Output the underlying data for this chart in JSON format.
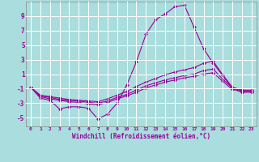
{
  "title": "",
  "xlabel": "Windchill (Refroidissement éolien,°C)",
  "ylabel": "",
  "bg_color": "#aadddd",
  "line_color": "#990099",
  "grid_color": "#bbeeee",
  "xlim": [
    -0.5,
    23.5
  ],
  "ylim": [
    -6.2,
    11.0
  ],
  "yticks": [
    -5,
    -3,
    -1,
    1,
    3,
    5,
    7,
    9
  ],
  "xticks": [
    0,
    1,
    2,
    3,
    4,
    5,
    6,
    7,
    8,
    9,
    10,
    11,
    12,
    13,
    14,
    15,
    16,
    17,
    18,
    19,
    20,
    21,
    22,
    23
  ],
  "series": [
    {
      "x": [
        0,
        1,
        2,
        3,
        4,
        5,
        6,
        7,
        8,
        9,
        10,
        11,
        12,
        13,
        14,
        15,
        16,
        17,
        18,
        19,
        20,
        21,
        22,
        23
      ],
      "y": [
        -0.8,
        -2.3,
        -2.6,
        -3.8,
        -3.5,
        -3.5,
        -3.7,
        -5.2,
        -4.5,
        -3.0,
        -0.5,
        2.7,
        6.5,
        8.5,
        9.3,
        10.3,
        10.5,
        7.5,
        4.5,
        2.5,
        0.8,
        -1.0,
        -1.5,
        -1.5
      ]
    },
    {
      "x": [
        0,
        1,
        2,
        3,
        4,
        5,
        6,
        7,
        8,
        9,
        10,
        11,
        12,
        13,
        14,
        15,
        16,
        17,
        18,
        19,
        20,
        21,
        22,
        23
      ],
      "y": [
        -0.8,
        -1.9,
        -2.1,
        -2.3,
        -2.5,
        -2.6,
        -2.7,
        -2.8,
        -2.4,
        -1.9,
        -1.4,
        -0.7,
        -0.1,
        0.4,
        0.9,
        1.3,
        1.6,
        1.9,
        2.5,
        2.8,
        0.9,
        -0.8,
        -1.2,
        -1.2
      ]
    },
    {
      "x": [
        0,
        1,
        2,
        3,
        4,
        5,
        6,
        7,
        8,
        9,
        10,
        11,
        12,
        13,
        14,
        15,
        16,
        17,
        18,
        19,
        20,
        21,
        22,
        23
      ],
      "y": [
        -0.8,
        -2.0,
        -2.2,
        -2.5,
        -2.6,
        -2.7,
        -2.9,
        -3.0,
        -2.7,
        -2.2,
        -1.8,
        -1.2,
        -0.6,
        -0.2,
        0.2,
        0.5,
        0.8,
        1.0,
        1.5,
        1.7,
        0.3,
        -0.9,
        -1.3,
        -1.3
      ]
    },
    {
      "x": [
        0,
        1,
        2,
        3,
        4,
        5,
        6,
        7,
        8,
        9,
        10,
        11,
        12,
        13,
        14,
        15,
        16,
        17,
        18,
        19,
        20,
        21,
        22,
        23
      ],
      "y": [
        -0.8,
        -2.1,
        -2.4,
        -2.6,
        -2.8,
        -2.9,
        -3.1,
        -3.2,
        -2.9,
        -2.4,
        -2.0,
        -1.5,
        -0.9,
        -0.5,
        -0.1,
        0.2,
        0.5,
        0.7,
        1.0,
        1.2,
        0.0,
        -1.1,
        -1.4,
        -1.4
      ]
    }
  ]
}
